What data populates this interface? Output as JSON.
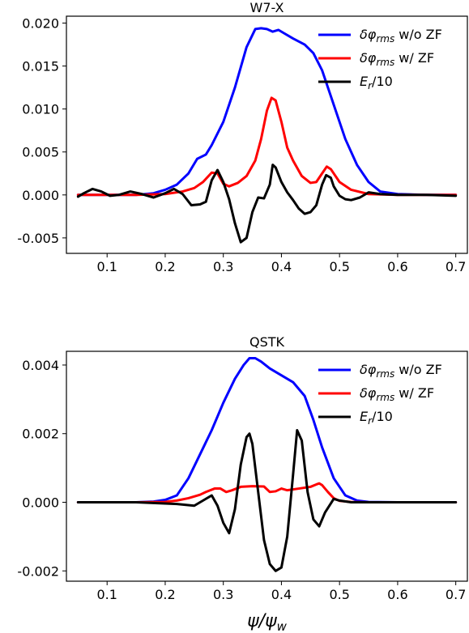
{
  "chart_data": [
    {
      "type": "line",
      "title": "W7-X",
      "xlim": [
        0.03,
        0.72
      ],
      "ylim": [
        -0.0068,
        0.0208
      ],
      "xticks": [
        0.1,
        0.2,
        0.3,
        0.4,
        0.5,
        0.6,
        0.7
      ],
      "xtick_labels": [
        "0.1",
        "0.2",
        "0.3",
        "0.4",
        "0.5",
        "0.6",
        "0.7"
      ],
      "yticks": [
        -0.005,
        0.0,
        0.005,
        0.01,
        0.015,
        0.02
      ],
      "ytick_labels": [
        "-0.005",
        "0.000",
        "0.005",
        "0.010",
        "0.015",
        "0.020"
      ],
      "legend_position": "top-right",
      "grid": false,
      "series": [
        {
          "name_main": "δφ",
          "name_sub": "rms",
          "name_rest": " w/o ZF",
          "color": "#0000ff",
          "x": [
            0.05,
            0.1,
            0.15,
            0.18,
            0.2,
            0.22,
            0.24,
            0.255,
            0.27,
            0.28,
            0.3,
            0.32,
            0.34,
            0.355,
            0.365,
            0.375,
            0.385,
            0.395,
            0.405,
            0.42,
            0.44,
            0.455,
            0.47,
            0.49,
            0.51,
            0.53,
            0.55,
            0.57,
            0.6,
            0.65,
            0.7
          ],
          "y": [
            0.0,
            0.0,
            0.0,
            0.0002,
            0.0006,
            0.0012,
            0.0025,
            0.0042,
            0.0047,
            0.0058,
            0.0085,
            0.0125,
            0.0172,
            0.0193,
            0.0194,
            0.0193,
            0.019,
            0.0192,
            0.0188,
            0.0182,
            0.0175,
            0.0165,
            0.0145,
            0.0105,
            0.0065,
            0.0035,
            0.0015,
            0.0004,
            0.0001,
            0.0,
            0.0
          ]
        },
        {
          "name_main": "δφ",
          "name_sub": "rms",
          "name_rest": " w/ ZF",
          "color": "#ff0000",
          "x": [
            0.05,
            0.15,
            0.2,
            0.23,
            0.25,
            0.265,
            0.28,
            0.29,
            0.3,
            0.31,
            0.325,
            0.34,
            0.355,
            0.365,
            0.375,
            0.383,
            0.39,
            0.4,
            0.41,
            0.42,
            0.435,
            0.45,
            0.46,
            0.47,
            0.478,
            0.485,
            0.5,
            0.52,
            0.55,
            0.6,
            0.7
          ],
          "y": [
            0.0,
            0.0,
            0.0001,
            0.0004,
            0.0008,
            0.0015,
            0.0026,
            0.0025,
            0.0013,
            0.001,
            0.0014,
            0.0022,
            0.004,
            0.0065,
            0.0098,
            0.0113,
            0.011,
            0.0085,
            0.0055,
            0.004,
            0.0022,
            0.0014,
            0.0015,
            0.0025,
            0.0033,
            0.003,
            0.0015,
            0.0006,
            0.0001,
            0.0,
            0.0
          ]
        },
        {
          "name_main": "E",
          "name_sub": "r",
          "name_rest": "/10",
          "color": "#000000",
          "x": [
            0.05,
            0.06,
            0.075,
            0.09,
            0.105,
            0.12,
            0.14,
            0.16,
            0.18,
            0.2,
            0.215,
            0.23,
            0.245,
            0.26,
            0.27,
            0.28,
            0.29,
            0.3,
            0.31,
            0.32,
            0.33,
            0.34,
            0.35,
            0.36,
            0.37,
            0.38,
            0.385,
            0.39,
            0.4,
            0.41,
            0.42,
            0.43,
            0.44,
            0.45,
            0.46,
            0.47,
            0.477,
            0.485,
            0.49,
            0.5,
            0.51,
            0.52,
            0.535,
            0.55,
            0.57,
            0.6,
            0.65,
            0.7
          ],
          "y": [
            -0.0002,
            0.0002,
            0.0007,
            0.0004,
            -0.0001,
            0.0,
            0.0004,
            0.0001,
            -0.0003,
            0.0002,
            0.0007,
            0.0001,
            -0.0012,
            -0.0011,
            -0.0008,
            0.0017,
            0.0029,
            0.0015,
            -0.0005,
            -0.0033,
            -0.0055,
            -0.005,
            -0.002,
            -0.0003,
            -0.0004,
            0.0012,
            0.0035,
            0.0032,
            0.0015,
            0.0003,
            -0.0006,
            -0.0016,
            -0.0022,
            -0.002,
            -0.0012,
            0.0012,
            0.0023,
            0.002,
            0.001,
            -0.0001,
            -0.0005,
            -0.0006,
            -0.0003,
            0.0003,
            0.0001,
            0.0,
            0.0,
            -0.0001
          ]
        }
      ]
    },
    {
      "type": "line",
      "title": "QSTK",
      "xlabel_main": "ψ/ψ",
      "xlabel_sub": "w",
      "xlim": [
        0.03,
        0.72
      ],
      "ylim": [
        -0.0023,
        0.0044
      ],
      "xticks": [
        0.1,
        0.2,
        0.3,
        0.4,
        0.5,
        0.6,
        0.7
      ],
      "xtick_labels": [
        "0.1",
        "0.2",
        "0.3",
        "0.4",
        "0.5",
        "0.6",
        "0.7"
      ],
      "yticks": [
        -0.002,
        0.0,
        0.002,
        0.004
      ],
      "ytick_labels": [
        "-0.002",
        "0.000",
        "0.002",
        "0.004"
      ],
      "legend_position": "top-right",
      "grid": false,
      "series": [
        {
          "name_main": "δφ",
          "name_sub": "rms",
          "name_rest": " w/o ZF",
          "color": "#0000ff",
          "x": [
            0.05,
            0.1,
            0.15,
            0.18,
            0.2,
            0.22,
            0.24,
            0.26,
            0.28,
            0.3,
            0.32,
            0.335,
            0.345,
            0.355,
            0.365,
            0.38,
            0.4,
            0.42,
            0.44,
            0.455,
            0.47,
            0.49,
            0.51,
            0.53,
            0.55,
            0.6,
            0.7
          ],
          "y": [
            0.0,
            0.0,
            0.0,
            2e-05,
            7e-05,
            0.0002,
            0.0007,
            0.0014,
            0.0021,
            0.0029,
            0.0036,
            0.004,
            0.0042,
            0.0042,
            0.0041,
            0.0039,
            0.0037,
            0.0035,
            0.0031,
            0.0024,
            0.0016,
            0.0007,
            0.0002,
            5e-05,
            1e-05,
            0.0,
            0.0
          ]
        },
        {
          "name_main": "δφ",
          "name_sub": "rms",
          "name_rest": " w/ ZF",
          "color": "#ff0000",
          "x": [
            0.05,
            0.15,
            0.2,
            0.22,
            0.24,
            0.26,
            0.27,
            0.285,
            0.295,
            0.305,
            0.315,
            0.33,
            0.35,
            0.37,
            0.38,
            0.39,
            0.4,
            0.41,
            0.43,
            0.45,
            0.46,
            0.465,
            0.47,
            0.48,
            0.49,
            0.5,
            0.52,
            0.55,
            0.7
          ],
          "y": [
            0.0,
            0.0,
            1e-05,
            5e-05,
            0.00012,
            0.00022,
            0.0003,
            0.0004,
            0.0004,
            0.0003,
            0.00035,
            0.00045,
            0.00047,
            0.00046,
            0.0003,
            0.00032,
            0.0004,
            0.00035,
            0.0004,
            0.00045,
            0.00052,
            0.00055,
            0.0005,
            0.0003,
            0.00012,
            4e-05,
            1e-05,
            0.0,
            0.0
          ]
        },
        {
          "name_main": "E",
          "name_sub": "r",
          "name_rest": "/10",
          "color": "#000000",
          "x": [
            0.05,
            0.15,
            0.22,
            0.25,
            0.27,
            0.28,
            0.29,
            0.3,
            0.31,
            0.32,
            0.33,
            0.34,
            0.345,
            0.35,
            0.36,
            0.37,
            0.38,
            0.39,
            0.4,
            0.41,
            0.42,
            0.427,
            0.435,
            0.445,
            0.455,
            0.465,
            0.475,
            0.49,
            0.5,
            0.52,
            0.55,
            0.7
          ],
          "y": [
            0.0,
            0.0,
            -5e-05,
            -0.0001,
            0.0001,
            0.0002,
            -0.0001,
            -0.0006,
            -0.0009,
            -0.0002,
            0.0011,
            0.0019,
            0.002,
            0.0017,
            0.0003,
            -0.0011,
            -0.0018,
            -0.002,
            -0.0019,
            -0.001,
            0.0008,
            0.0021,
            0.0018,
            0.0003,
            -0.0005,
            -0.0007,
            -0.0003,
            0.0001,
            5e-05,
            0.0,
            0.0,
            0.0
          ]
        }
      ]
    }
  ]
}
